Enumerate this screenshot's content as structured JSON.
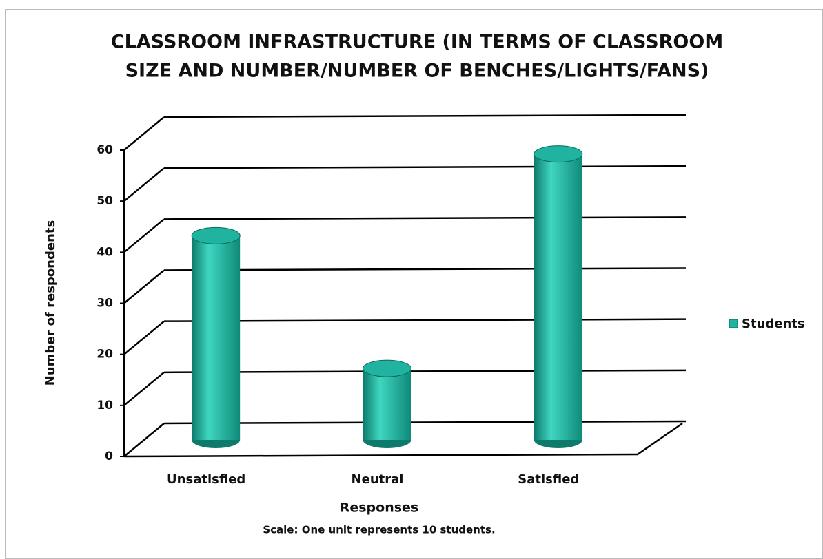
{
  "chart_data": {
    "type": "bar",
    "title": [
      "CLASSROOM INFRASTRUCTURE (IN TERMS OF CLASSROOM",
      "SIZE AND NUMBER/NUMBER OF BENCHES/LIGHTS/FANS)"
    ],
    "x_label": "Responses",
    "y_label": "Number of respondents",
    "note": "Scale: One unit represents 10 students.",
    "categories": [
      "Unsatisfied",
      "Neutral",
      "Satisfied"
    ],
    "series": [
      {
        "name": "Students",
        "color": "#1fb3a0",
        "values": [
          40,
          14,
          56
        ]
      }
    ],
    "ylim": [
      0,
      60
    ],
    "yticks": [
      0,
      10,
      20,
      30,
      40,
      50,
      60
    ],
    "grid": true,
    "legend": "right"
  }
}
